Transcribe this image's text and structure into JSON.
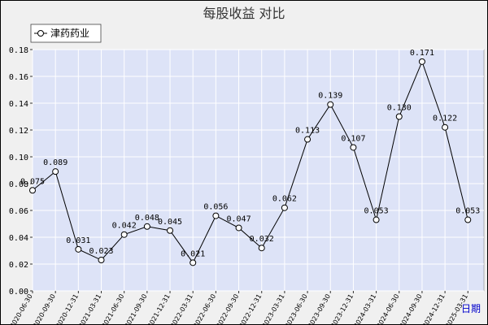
{
  "chart_data": {
    "type": "line",
    "title": "每股收益  对比",
    "xlabel": "日期",
    "ylabel": "",
    "legend_position": "top-left",
    "grid": true,
    "ylim": [
      0.0,
      0.18
    ],
    "yticks": [
      "0.00",
      "0.02",
      "0.04",
      "0.06",
      "0.08",
      "0.10",
      "0.12",
      "0.14",
      "0.16",
      "0.18"
    ],
    "categories": [
      "2020-06-30",
      "2020-09-30",
      "2020-12-31",
      "2021-03-31",
      "2021-06-30",
      "2021-09-30",
      "2021-12-31",
      "2022-03-31",
      "2022-06-30",
      "2022-09-30",
      "2022-12-31",
      "2023-03-31",
      "2023-06-30",
      "2023-09-30",
      "2023-12-31",
      "2024-03-31",
      "2024-06-30",
      "2024-09-30",
      "2024-12-31",
      "2025-03-31"
    ],
    "series": [
      {
        "name": "津药药业",
        "color": "#000000",
        "values": [
          0.075,
          0.089,
          0.031,
          0.023,
          0.042,
          0.048,
          0.045,
          0.021,
          0.056,
          0.047,
          0.032,
          0.062,
          0.113,
          0.139,
          0.107,
          0.053,
          0.13,
          0.171,
          0.122,
          0.053
        ],
        "labels": [
          "0.075",
          "0.089",
          "0.031",
          "0.023",
          "0.042",
          "0.048",
          "0.045",
          "0.021",
          "0.056",
          "0.047",
          "0.032",
          "0.062",
          "0.113",
          "0.139",
          "0.107",
          "0.053",
          "0.130",
          "0.171",
          "0.122",
          "0.053"
        ]
      }
    ],
    "colors": {
      "plot_bg": "#dde3f7",
      "frame_bg": "#f0f0f0",
      "grid": "#ffffff",
      "line": "#000000",
      "xlabel": "#0000cc"
    }
  }
}
